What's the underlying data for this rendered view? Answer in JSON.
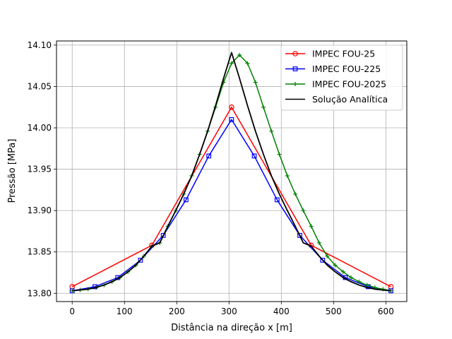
{
  "chart_data": {
    "type": "line",
    "title": "",
    "xlabel": "Distância na direção x [m]",
    "ylabel": "Pressão [MPa]",
    "xlim": [
      -30,
      640
    ],
    "ylim": [
      13.79,
      14.105
    ],
    "xticks": [
      0,
      100,
      200,
      300,
      400,
      500,
      600
    ],
    "yticks": [
      13.8,
      13.85,
      13.9,
      13.95,
      14.0,
      14.05,
      14.1
    ],
    "ytick_labels": [
      "13.80",
      "13.85",
      "13.90",
      "13.95",
      "14.00",
      "14.05",
      "14.10"
    ],
    "grid": true,
    "legend_position": "top-right",
    "series": [
      {
        "name": "IMPEC FOU-25",
        "color": "#ff0000",
        "marker": "circle",
        "x": [
          0,
          152.4,
          304.8,
          457.2,
          609.6
        ],
        "y": [
          13.808,
          13.858,
          14.025,
          13.858,
          13.808
        ]
      },
      {
        "name": "IMPEC FOU-225",
        "color": "#0000ff",
        "marker": "square",
        "x": [
          0,
          43.5,
          87.1,
          130.6,
          174.2,
          217.7,
          261.3,
          304.8,
          348.3,
          391.9,
          435.4,
          479.0,
          522.5,
          566.1,
          609.6
        ],
        "y": [
          13.803,
          13.808,
          13.819,
          13.84,
          13.87,
          13.913,
          13.966,
          14.01,
          13.966,
          13.913,
          13.87,
          13.84,
          13.819,
          13.808,
          13.803
        ]
      },
      {
        "name": "IMPEC FOU-2025",
        "color": "#008000",
        "marker": "plus",
        "x": [
          0,
          15.2,
          30.5,
          45.7,
          61.0,
          76.2,
          91.4,
          106.7,
          121.9,
          137.2,
          152.4,
          167.6,
          182.9,
          198.1,
          213.4,
          228.6,
          243.8,
          259.1,
          274.3,
          289.6,
          304.8,
          320.0,
          335.3,
          350.5,
          365.8,
          381.0,
          396.2,
          411.5,
          426.7,
          442.0,
          457.2,
          472.4,
          487.7,
          502.9,
          518.2,
          533.4,
          548.6,
          563.9,
          579.1,
          594.4,
          609.6
        ],
        "y": [
          13.803,
          13.804,
          13.805,
          13.807,
          13.81,
          13.814,
          13.819,
          13.826,
          13.834,
          13.845,
          13.857,
          13.861,
          13.881,
          13.9,
          13.92,
          13.942,
          13.968,
          13.996,
          14.025,
          14.055,
          14.078,
          14.088,
          14.078,
          14.055,
          14.025,
          13.996,
          13.968,
          13.942,
          13.92,
          13.9,
          13.881,
          13.861,
          13.845,
          13.834,
          13.826,
          13.819,
          13.814,
          13.81,
          13.807,
          13.805,
          13.803
        ]
      },
      {
        "name": "Solução Analítica",
        "color": "#000000",
        "marker": "none",
        "x": [
          0,
          15.2,
          30.5,
          45.7,
          61.0,
          76.2,
          91.4,
          106.7,
          121.9,
          137.2,
          152.4,
          167.6,
          182.9,
          198.1,
          213.4,
          228.6,
          243.8,
          259.1,
          274.3,
          289.6,
          304.8,
          320.0,
          335.3,
          350.5,
          365.8,
          381.0,
          396.2,
          411.5,
          426.7,
          442.0,
          457.2,
          472.4,
          487.7,
          502.9,
          518.2,
          533.4,
          548.6,
          563.9,
          579.1,
          594.4,
          609.6
        ],
        "y": [
          13.803,
          13.804,
          13.805,
          13.807,
          13.81,
          13.814,
          13.819,
          13.826,
          13.834,
          13.845,
          13.857,
          13.861,
          13.881,
          13.9,
          13.92,
          13.942,
          13.968,
          13.996,
          14.027,
          14.06,
          14.091,
          14.06,
          14.027,
          13.996,
          13.968,
          13.942,
          13.92,
          13.9,
          13.881,
          13.861,
          13.857,
          13.845,
          13.834,
          13.826,
          13.819,
          13.814,
          13.81,
          13.807,
          13.805,
          13.804,
          13.803
        ]
      }
    ]
  }
}
